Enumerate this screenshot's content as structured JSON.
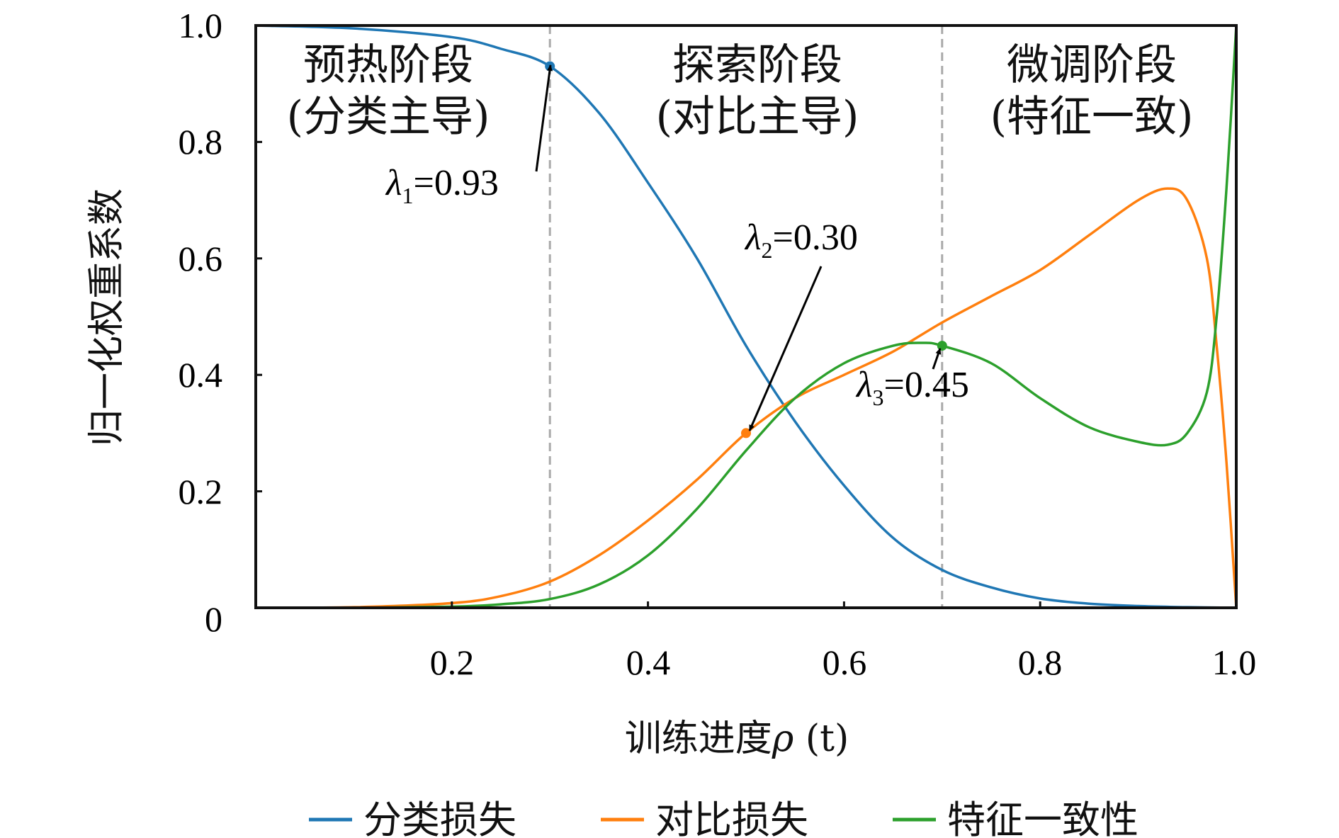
{
  "chart_data": {
    "type": "line",
    "xlabel": {
      "text": "训练进度",
      "symbol": "ρ",
      "suffix": " (t)"
    },
    "ylabel": "归一化权重系数",
    "xlim": [
      0,
      1.0
    ],
    "ylim": [
      0,
      1.0
    ],
    "grid": false,
    "legend_position": "bottom",
    "x_ticks": [
      "0",
      "0.2",
      "0.4",
      "0.6",
      "0.8",
      "1.0"
    ],
    "y_ticks": [
      "0.2",
      "0.4",
      "0.6",
      "0.8",
      "1.0"
    ],
    "phase_boundaries": [
      0.3,
      0.7
    ],
    "phases": [
      {
        "title": "预热阶段",
        "subtitle": "(分类主导)"
      },
      {
        "title": "探索阶段",
        "subtitle": "(对比主导)"
      },
      {
        "title": "微调阶段",
        "subtitle": "(特征一致)"
      }
    ],
    "series": [
      {
        "name": "分类损失",
        "color": "#1f77b4",
        "x": [
          0,
          0.1,
          0.2,
          0.25,
          0.3,
          0.35,
          0.4,
          0.45,
          0.5,
          0.55,
          0.6,
          0.65,
          0.7,
          0.75,
          0.8,
          0.85,
          0.9,
          0.95,
          1.0
        ],
        "y": [
          1.0,
          0.995,
          0.98,
          0.96,
          0.93,
          0.85,
          0.73,
          0.6,
          0.45,
          0.32,
          0.21,
          0.12,
          0.065,
          0.035,
          0.016,
          0.007,
          0.003,
          0.001,
          0.0
        ]
      },
      {
        "name": "对比损失",
        "color": "#ff7f0e",
        "x": [
          0,
          0.1,
          0.2,
          0.25,
          0.3,
          0.35,
          0.4,
          0.45,
          0.5,
          0.55,
          0.6,
          0.65,
          0.7,
          0.75,
          0.8,
          0.85,
          0.9,
          0.93,
          0.95,
          0.97,
          0.98,
          0.99,
          1.0
        ],
        "y": [
          0.0,
          0.001,
          0.008,
          0.02,
          0.045,
          0.09,
          0.15,
          0.22,
          0.3,
          0.36,
          0.4,
          0.44,
          0.49,
          0.535,
          0.58,
          0.64,
          0.7,
          0.72,
          0.7,
          0.6,
          0.45,
          0.25,
          0.0
        ]
      },
      {
        "name": "特征一致性",
        "color": "#2ca02c",
        "x": [
          0,
          0.1,
          0.2,
          0.25,
          0.3,
          0.35,
          0.4,
          0.45,
          0.5,
          0.55,
          0.6,
          0.65,
          0.68,
          0.7,
          0.75,
          0.8,
          0.85,
          0.9,
          0.93,
          0.95,
          0.97,
          0.98,
          0.99,
          1.0
        ],
        "y": [
          0.0,
          0.0,
          0.002,
          0.006,
          0.015,
          0.04,
          0.09,
          0.17,
          0.27,
          0.36,
          0.42,
          0.45,
          0.455,
          0.45,
          0.42,
          0.36,
          0.31,
          0.285,
          0.28,
          0.3,
          0.37,
          0.5,
          0.72,
          1.0
        ]
      }
    ],
    "annotations": [
      {
        "symbol": "λ",
        "sub": "1",
        "value": "=0.93",
        "x": 0.3,
        "y": 0.93,
        "color": "#1f77b4"
      },
      {
        "symbol": "λ",
        "sub": "2",
        "value": "=0.30",
        "x": 0.5,
        "y": 0.3,
        "color": "#ff7f0e"
      },
      {
        "symbol": "λ",
        "sub": "3",
        "value": "=0.45",
        "x": 0.7,
        "y": 0.45,
        "color": "#2ca02c"
      }
    ]
  }
}
